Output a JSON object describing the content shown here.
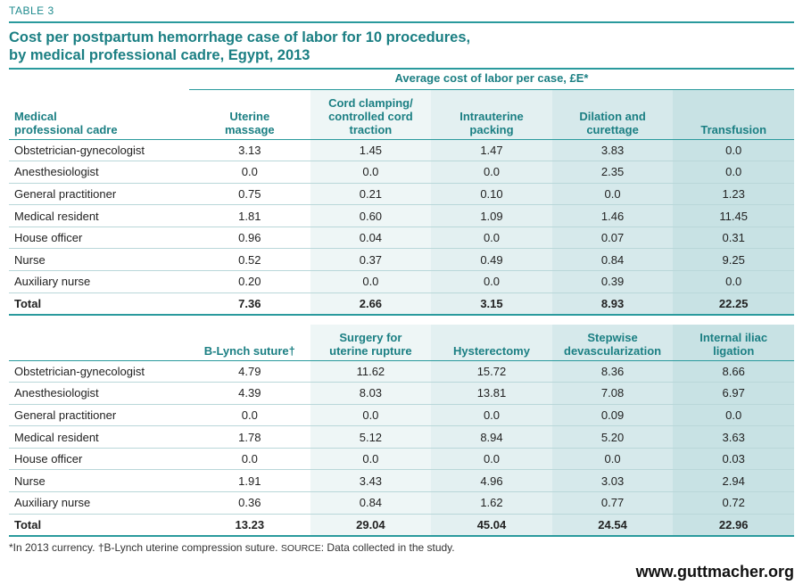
{
  "table_label": "TABLE 3",
  "title_line1": "Cost per postpartum hemorrhage case of labor for 10 procedures,",
  "title_line2": "by medical professional cadre, Egypt, 2013",
  "super_header": "Average cost of labor per case, £E*",
  "table1": {
    "headers": [
      [
        "Medical",
        "professional cadre"
      ],
      [
        "Uterine",
        "massage"
      ],
      [
        "Cord clamping/",
        "controlled cord",
        "traction"
      ],
      [
        "Intrauterine",
        "packing"
      ],
      [
        "Dilation and",
        "curettage"
      ],
      [
        "Transfusion"
      ]
    ],
    "rows": [
      [
        "Obstetrician-gynecologist",
        "3.13",
        "1.45",
        "1.47",
        "3.83",
        "0.0"
      ],
      [
        "Anesthesiologist",
        "0.0",
        "0.0",
        "0.0",
        "2.35",
        "0.0"
      ],
      [
        "General practitioner",
        "0.75",
        "0.21",
        "0.10",
        "0.0",
        "1.23"
      ],
      [
        "Medical resident",
        "1.81",
        "0.60",
        "1.09",
        "1.46",
        "11.45"
      ],
      [
        "House officer",
        "0.96",
        "0.04",
        "0.0",
        "0.07",
        "0.31"
      ],
      [
        "Nurse",
        "0.52",
        "0.37",
        "0.49",
        "0.84",
        "9.25"
      ],
      [
        "Auxiliary nurse",
        "0.20",
        "0.0",
        "0.0",
        "0.39",
        "0.0"
      ],
      [
        "Total",
        "7.36",
        "2.66",
        "3.15",
        "8.93",
        "22.25"
      ]
    ]
  },
  "table2": {
    "headers": [
      [
        ""
      ],
      [
        "B-Lynch suture†"
      ],
      [
        "Surgery for",
        "uterine rupture"
      ],
      [
        "Hysterectomy"
      ],
      [
        "Stepwise",
        "devascularization"
      ],
      [
        "Internal iliac",
        "ligation"
      ]
    ],
    "rows": [
      [
        "Obstetrician-gynecologist",
        "4.79",
        "11.62",
        "15.72",
        "8.36",
        "8.66"
      ],
      [
        "Anesthesiologist",
        "4.39",
        "8.03",
        "13.81",
        "7.08",
        "6.97"
      ],
      [
        "General practitioner",
        "0.0",
        "0.0",
        "0.0",
        "0.09",
        "0.0"
      ],
      [
        "Medical resident",
        "1.78",
        "5.12",
        "8.94",
        "5.20",
        "3.63"
      ],
      [
        "House officer",
        "0.0",
        "0.0",
        "0.0",
        "0.0",
        "0.03"
      ],
      [
        "Nurse",
        "1.91",
        "3.43",
        "4.96",
        "3.03",
        "2.94"
      ],
      [
        "Auxiliary nurse",
        "0.36",
        "0.84",
        "1.62",
        "0.77",
        "0.72"
      ],
      [
        "Total",
        "13.23",
        "29.04",
        "45.04",
        "24.54",
        "22.96"
      ]
    ]
  },
  "footnote_part1": "*In 2013 currency. †B-Lynch uterine compression suture. ",
  "footnote_source": "SOURCE",
  "footnote_part2": ": Data collected in the study.",
  "website": "www.guttmacher.org"
}
